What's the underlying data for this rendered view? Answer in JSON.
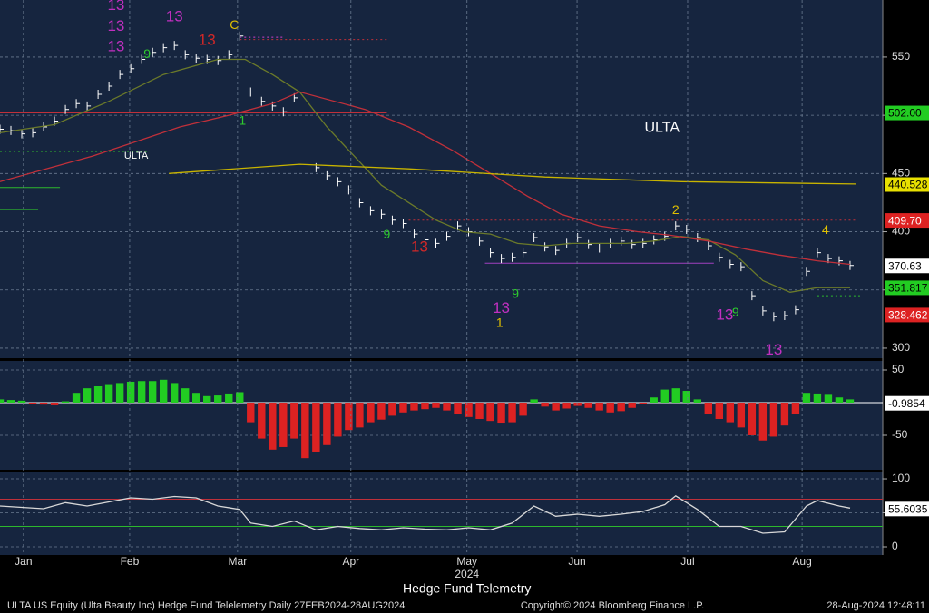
{
  "chart_data": [
    {
      "type": "price",
      "xlim": [
        0,
        162
      ],
      "ylim": [
        291.4,
        599
      ],
      "yticks": [
        300,
        350,
        400,
        450,
        500,
        550
      ],
      "grid": true,
      "series": [
        {
          "style": "ticks",
          "color": "#ffffff",
          "x": [
            0,
            2,
            4,
            6,
            8,
            10,
            12,
            14,
            16,
            18,
            20,
            22,
            24,
            26,
            28,
            30,
            32,
            34,
            36,
            38,
            40,
            42,
            44,
            46,
            48,
            50,
            52,
            54,
            56,
            58,
            60,
            62,
            64,
            66,
            68,
            70,
            72,
            74,
            76,
            78,
            80,
            82,
            84,
            86,
            88,
            90,
            92,
            94,
            96,
            98,
            100,
            102,
            104,
            106,
            108,
            110,
            112,
            114,
            116,
            118,
            120,
            122,
            124,
            126,
            128,
            130,
            132,
            134,
            136,
            138,
            140,
            142,
            144,
            146,
            148,
            150,
            152,
            154,
            156
          ],
          "values": [
            488,
            487,
            484,
            485,
            490,
            495,
            505,
            510,
            508,
            518,
            525,
            535,
            540,
            548,
            554,
            558,
            560,
            552,
            549,
            548,
            547,
            552,
            568,
            520,
            512,
            508,
            503,
            515,
            null,
            455,
            448,
            443,
            436,
            425,
            418,
            415,
            410,
            407,
            398,
            393,
            390,
            396,
            405,
            400,
            392,
            382,
            377,
            378,
            382,
            395,
            387,
            384,
            390,
            395,
            389,
            386,
            390,
            392,
            389,
            390,
            393,
            396,
            405,
            402,
            395,
            388,
            378,
            372,
            370,
            345,
            332,
            327,
            328,
            333,
            366,
            382,
            377,
            375,
            371
          ]
        },
        {
          "style": "line",
          "color": "#6b7a2a",
          "x": [
            0,
            10,
            20,
            30,
            40,
            45,
            50,
            55,
            60,
            65,
            70,
            75,
            80,
            85,
            90,
            95,
            100,
            105,
            110,
            115,
            120,
            125,
            130,
            135,
            140,
            145,
            150,
            156
          ],
          "values": [
            485,
            492,
            512,
            535,
            548,
            548,
            535,
            520,
            490,
            465,
            440,
            425,
            410,
            400,
            398,
            390,
            388,
            390,
            390,
            390,
            392,
            396,
            393,
            380,
            358,
            348,
            352,
            352
          ]
        },
        {
          "style": "line",
          "color": "#c0303a",
          "x": [
            0,
            17,
            33,
            42,
            50,
            55,
            67,
            75,
            83,
            90,
            97,
            103,
            110,
            117,
            123,
            130,
            137,
            143,
            150,
            156
          ],
          "values": [
            443,
            465,
            490,
            500,
            510,
            520,
            505,
            490,
            470,
            450,
            430,
            415,
            405,
            400,
            397,
            392,
            385,
            380,
            375,
            372
          ]
        },
        {
          "style": "line",
          "color": "#c8b400",
          "x": [
            31,
            55,
            75,
            100,
            125,
            157
          ],
          "values": [
            450,
            458,
            454,
            447,
            443,
            441
          ]
        }
      ],
      "levels": [
        {
          "value": 502,
          "x": [
            0,
            71
          ],
          "color": "#c0303a",
          "dash": false
        },
        {
          "value": 565,
          "x": [
            44,
            71
          ],
          "color": "#c0303a",
          "dash": true
        },
        {
          "value": 567,
          "x": [
            44,
            52
          ],
          "color": "#d040d0",
          "dash": true
        },
        {
          "value": 373,
          "x": [
            89,
            131
          ],
          "color": "#a040c0",
          "dash": false
        },
        {
          "value": 410,
          "x": [
            75,
            157
          ],
          "color": "#c0303a",
          "dash": true
        },
        {
          "value": 469,
          "x": [
            0,
            27
          ],
          "color": "#2db82d",
          "dash": true
        },
        {
          "value": 438,
          "x": [
            0,
            11
          ],
          "color": "#2db82d",
          "dash": false
        },
        {
          "value": 419,
          "x": [
            0,
            7
          ],
          "color": "#2db82d",
          "dash": false
        },
        {
          "value": 345,
          "x": [
            150,
            158
          ],
          "color": "#2db82d",
          "dash": true
        }
      ],
      "tags": [
        {
          "value": 502,
          "label": "502.00",
          "color": "#22cc22",
          "text_color": "#000000"
        },
        {
          "value": 440.528,
          "color": "#e8e000",
          "text_color": "#000000"
        },
        {
          "value": 409.7,
          "label": "409.70",
          "color": "#dd2222",
          "text_color": "#ffffff"
        },
        {
          "value": 370.63,
          "color": "#ffffff",
          "text_color": "#000000"
        },
        {
          "value": 351.817,
          "color": "#22cc22",
          "text_color": "#000000"
        },
        {
          "value": 328.462,
          "color": "#dd2222",
          "text_color": "#ffffff"
        }
      ],
      "labels": [
        {
          "text": "ULTA",
          "x": 121.5,
          "y": 489,
          "size": "big"
        },
        {
          "text": "ULTA",
          "x": 25,
          "y": 465,
          "size": "small"
        }
      ],
      "annotations": [
        {
          "text": "13",
          "x": 21.3,
          "y": 594,
          "color": "#c030c0"
        },
        {
          "text": "13",
          "x": 21.3,
          "y": 576,
          "color": "#c030c0"
        },
        {
          "text": "13",
          "x": 21.3,
          "y": 558.6,
          "color": "#c030c0"
        },
        {
          "text": "13",
          "x": 32,
          "y": 584,
          "color": "#c030c0"
        },
        {
          "text": "9",
          "x": 27,
          "y": 552,
          "color": "#2ecc2e"
        },
        {
          "text": "13",
          "x": 38,
          "y": 564,
          "color": "#d02828"
        },
        {
          "text": "C",
          "x": 43,
          "y": 577,
          "color": "#e0c000"
        },
        {
          "text": "1",
          "x": 44.5,
          "y": 495,
          "color": "#2ecc2e"
        },
        {
          "text": "9",
          "x": 71,
          "y": 397,
          "color": "#2ecc2e"
        },
        {
          "text": "13",
          "x": 77,
          "y": 386.5,
          "color": "#d02828"
        },
        {
          "text": "13",
          "x": 92,
          "y": 334,
          "color": "#c030c0"
        },
        {
          "text": "1",
          "x": 91.7,
          "y": 321,
          "color": "#e0c000"
        },
        {
          "text": "9",
          "x": 94.6,
          "y": 346,
          "color": "#2ecc2e"
        },
        {
          "text": "2",
          "x": 124,
          "y": 418,
          "color": "#e0c000"
        },
        {
          "text": "13",
          "x": 133,
          "y": 328,
          "color": "#c030c0"
        },
        {
          "text": "9",
          "x": 135,
          "y": 330,
          "color": "#2ecc2e"
        },
        {
          "text": "13",
          "x": 142,
          "y": 298,
          "color": "#c030c0"
        },
        {
          "text": "4",
          "x": 151.5,
          "y": 401,
          "color": "#e0c000"
        }
      ]
    },
    {
      "type": "histogram",
      "xlim": [
        0,
        162
      ],
      "ylim": [
        -102.8,
        63.9
      ],
      "yticks": [
        50,
        -50
      ],
      "grid": true,
      "pos_color": "#22cc22",
      "neg_color": "#dd2222",
      "x": [
        0,
        2,
        4,
        6,
        8,
        10,
        12,
        14,
        16,
        18,
        20,
        22,
        24,
        26,
        28,
        30,
        32,
        34,
        36,
        38,
        40,
        42,
        44,
        46,
        48,
        50,
        52,
        54,
        56,
        58,
        60,
        62,
        64,
        66,
        68,
        70,
        72,
        74,
        76,
        78,
        80,
        82,
        84,
        86,
        88,
        90,
        92,
        94,
        96,
        98,
        100,
        102,
        104,
        106,
        108,
        110,
        112,
        114,
        116,
        118,
        120,
        122,
        124,
        126,
        128,
        130,
        132,
        134,
        136,
        138,
        140,
        142,
        144,
        146,
        148,
        150,
        152,
        154,
        156
      ],
      "values": [
        5,
        4,
        3,
        -2,
        -3,
        -4,
        2,
        15,
        22,
        25,
        27,
        30,
        32,
        33,
        33,
        35,
        30,
        22,
        15,
        10,
        11,
        14,
        16,
        -30,
        -55,
        -72,
        -68,
        -55,
        -85,
        -75,
        -65,
        -52,
        -42,
        -38,
        -30,
        -26,
        -20,
        -15,
        -12,
        -10,
        -8,
        -12,
        -18,
        -22,
        -25,
        -28,
        -32,
        -30,
        -20,
        5,
        -6,
        -12,
        -9,
        -5,
        -8,
        -12,
        -15,
        -13,
        -8,
        -2,
        8,
        20,
        22,
        18,
        5,
        -18,
        -25,
        -30,
        -38,
        -50,
        -58,
        -52,
        -35,
        -18,
        15,
        14,
        12,
        8,
        5
      ],
      "levels": [
        {
          "value": 0,
          "x": [
            0,
            162
          ],
          "color": "#ffffff",
          "dash": false
        }
      ],
      "tags": [
        {
          "value": -0.9854,
          "color": "#ffffff",
          "text_color": "#000000"
        }
      ]
    },
    {
      "type": "rsi",
      "xlim": [
        0,
        162
      ],
      "ylim": [
        -12,
        110.7
      ],
      "yticks": [
        100,
        50,
        0
      ],
      "grid": true,
      "xticks": [
        {
          "value": 4.3,
          "label": "Jan"
        },
        {
          "value": 23.8,
          "label": "Feb"
        },
        {
          "value": 43.6,
          "label": "Mar"
        },
        {
          "value": 64.4,
          "label": "Apr"
        },
        {
          "value": 85.7,
          "label": "May"
        },
        {
          "value": 105.9,
          "label": "Jun"
        },
        {
          "value": 126.2,
          "label": "Jul"
        },
        {
          "value": 147.2,
          "label": "Aug"
        }
      ],
      "year_label": "2024",
      "xlabel": "Hedge Fund Telemetry",
      "series": [
        {
          "style": "line",
          "color": "#d8d8d8",
          "x": [
            0,
            4,
            8,
            12,
            16,
            20,
            24,
            28,
            32,
            36,
            40,
            44,
            46,
            50,
            54,
            58,
            62,
            66,
            70,
            74,
            78,
            82,
            86,
            90,
            94,
            98,
            102,
            106,
            110,
            114,
            118,
            122,
            124,
            128,
            132,
            136,
            140,
            144,
            148,
            150,
            154,
            156
          ],
          "values": [
            60,
            58,
            56,
            65,
            60,
            66,
            72,
            70,
            74,
            72,
            60,
            55,
            35,
            30,
            38,
            25,
            30,
            27,
            25,
            28,
            26,
            25,
            28,
            25,
            35,
            60,
            45,
            48,
            45,
            48,
            52,
            62,
            75,
            55,
            30,
            30,
            20,
            22,
            60,
            68,
            60,
            57
          ]
        }
      ],
      "levels": [
        {
          "value": 70,
          "x": [
            0,
            162
          ],
          "color": "#c0303a",
          "dash": false
        },
        {
          "value": 30,
          "x": [
            0,
            162
          ],
          "color": "#2db82d",
          "dash": false
        }
      ],
      "tags": [
        {
          "value": 55.6035,
          "color": "#ffffff",
          "text_color": "#000000"
        }
      ]
    }
  ],
  "footer": {
    "left": "ULTA US Equity (Ulta Beauty Inc) Hedge Fund Telelemetry  Daily 27FEB2024-28AUG2024",
    "center": "Copyright© 2024 Bloomberg Finance L.P.",
    "right": "28-Aug-2024 12:48:11"
  }
}
